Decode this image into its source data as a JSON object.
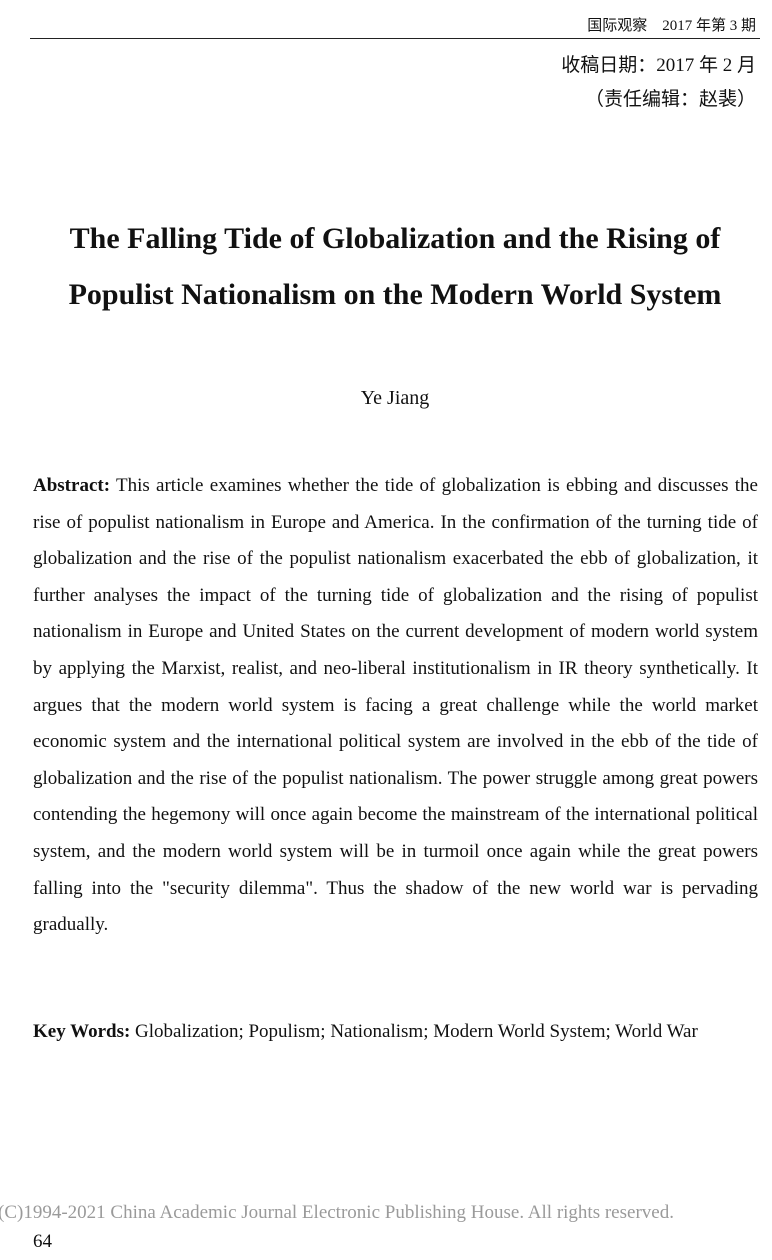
{
  "header": {
    "journal": "国际观察　2017 年第 3 期"
  },
  "meta": {
    "received": "收稿日期：2017 年 2 月",
    "editor": "（责任编辑：赵裴）"
  },
  "article": {
    "title": "The Falling Tide of Globalization and the Rising of Populist Nationalism on the Modern World System",
    "author": "Ye Jiang",
    "abstract_label": "Abstract:",
    "abstract_text": "This article examines whether the tide of globalization is ebbing and discusses the rise of populist nationalism in Europe and America. In the confirmation of the turning tide of globalization and the rise of the populist nationalism exacerbated the ebb of globalization, it further analyses the impact of the turning tide of globalization and the rising of populist nationalism in Europe and United States on the current development of modern world system by applying the Marxist, realist, and neo-liberal institutionalism in IR theory synthetically. It argues that the modern world system is facing a great challenge while the world market economic system and the international political system are involved in the ebb of the tide of globalization and the rise of the populist nationalism. The power struggle among great powers contending the hegemony will once again become the mainstream of the international political system, and the modern world system will be in turmoil once again while the great powers falling into the \"security dilemma\". Thus the shadow of the new world war is pervading gradually.",
    "keywords_label": "Key Words:",
    "keywords_text": "Globalization; Populism; Nationalism; Modern World System; World War"
  },
  "footer": {
    "copyright": "(C)1994-2021 China Academic Journal Electronic Publishing House. All rights reserved.",
    "page_number": "64"
  }
}
